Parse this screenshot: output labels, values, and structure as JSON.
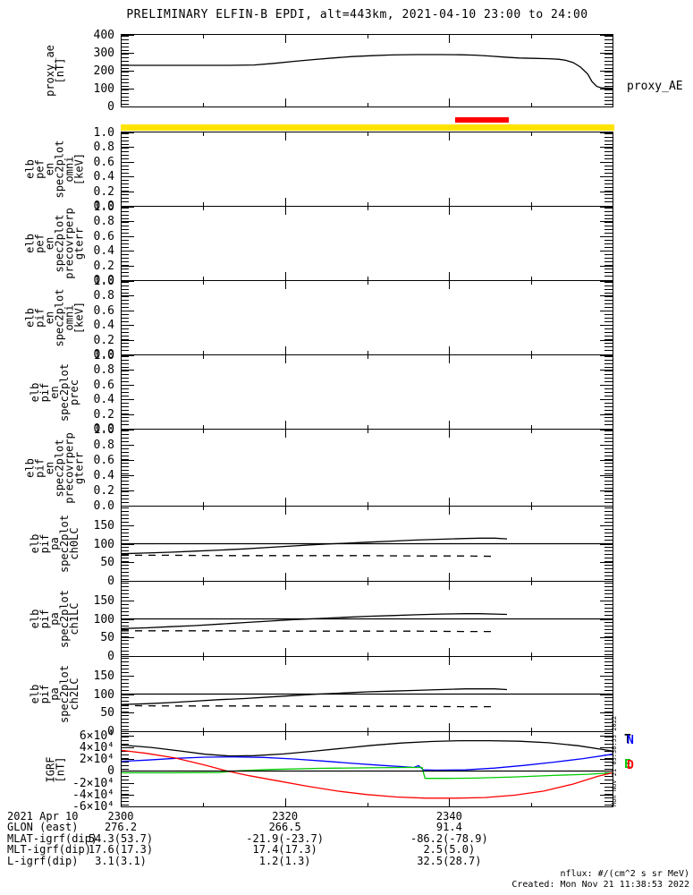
{
  "title": "PRELIMINARY ELFIN-B EPDI, alt=443km, 2021-04-10 23:00 to 24:00",
  "side_timestamp": "Mon Nov 21 03:38:53 2022",
  "footer": {
    "nflux_units": "nflux: #/(cm^2 s sr MeV)",
    "created": "Created: Mon Nov 21 11:38:53 2022"
  },
  "colors": {
    "axis": "#000000",
    "flag_yellow": "#ffe300",
    "flag_red": "#ff0000",
    "igrf_total": "#000000",
    "igrf_north": "#0000ff",
    "igrf_east": "#00cc00",
    "igrf_down": "#ff0000"
  },
  "flag_bars": [
    {
      "name": "red-flag-bar",
      "color": "#ff0000",
      "x0": 0.678,
      "x1": 0.785
    },
    {
      "name": "yellow-flag-bar",
      "color": "#ffe300",
      "x0": 0.0,
      "x1": 1.0
    }
  ],
  "igrf_legend": [
    {
      "label": "T",
      "color": "#000000"
    },
    {
      "label": "N",
      "color": "#0000ff"
    },
    {
      "label": "E",
      "color": "#00cc00"
    },
    {
      "label": "D",
      "color": "#ff0000"
    }
  ],
  "bottom_axis": {
    "date": "2021 Apr 10",
    "ticks": [
      {
        "label": "2300",
        "frac": 0.0
      },
      {
        "label": "2320",
        "frac": 0.3333
      },
      {
        "label": "2340",
        "frac": 0.6667
      }
    ],
    "rows": [
      {
        "label": "GLON (east)",
        "values": [
          "276.2",
          "266.5",
          "91.4"
        ]
      },
      {
        "label": "MLAT-igrf(dip)",
        "values": [
          "54.3(53.7)",
          "-21.9(-23.7)",
          "-86.2(-78.9)"
        ]
      },
      {
        "label": "MLT-igrf(dip)",
        "values": [
          "17.6(17.3)",
          "17.4(17.3)",
          "2.5(5.0)"
        ]
      },
      {
        "label": "L-igrf(dip)",
        "values": [
          "3.1(3.1)",
          "1.2(1.3)",
          "32.5(28.7)"
        ]
      }
    ]
  },
  "chart_data": [
    {
      "id": "proxy_ae",
      "type": "line",
      "ylabel_lines": [
        "proxy_ae",
        "[nT]"
      ],
      "right_label": "proxy_AE",
      "ylim": [
        0,
        400
      ],
      "yticks": [
        {
          "v": 400,
          "t": "400"
        },
        {
          "v": 300,
          "t": "300"
        },
        {
          "v": 200,
          "t": "200"
        },
        {
          "v": 100,
          "t": "100"
        },
        {
          "v": 0,
          "t": "0"
        }
      ],
      "xrange": [
        "23:00",
        "24:00"
      ],
      "series": [
        {
          "name": "proxy_ae",
          "color": "#000000",
          "style": "solid",
          "x": [
            0,
            0.08,
            0.16,
            0.22,
            0.27,
            0.31,
            0.35,
            0.39,
            0.43,
            0.47,
            0.51,
            0.55,
            0.6,
            0.65,
            0.69,
            0.72,
            0.75,
            0.78,
            0.81,
            0.84,
            0.87,
            0.89,
            0.905,
            0.92,
            0.935,
            0.95,
            0.958,
            0.968,
            0.978,
            1.0
          ],
          "y": [
            230,
            230,
            230,
            230,
            232,
            241,
            252,
            262,
            271,
            279,
            284,
            288,
            290,
            290,
            289,
            287,
            282,
            276,
            271,
            269,
            267,
            264,
            258,
            245,
            220,
            180,
            140,
            112,
            104,
            102
          ]
        }
      ]
    },
    {
      "id": "elb_pef_en_spec2plot_omni",
      "type": "empty",
      "ylabel_lines": [
        "elb",
        "pef",
        "en",
        "spec2plot",
        "omni",
        "[keV]"
      ],
      "ylim": [
        0,
        1
      ],
      "yticks": [
        {
          "v": 1,
          "t": "1.0"
        },
        {
          "v": 0.8,
          "t": "0.8"
        },
        {
          "v": 0.6,
          "t": "0.6"
        },
        {
          "v": 0.4,
          "t": "0.4"
        },
        {
          "v": 0.2,
          "t": "0.2"
        },
        {
          "v": 0,
          "t": "0.0"
        }
      ],
      "series": []
    },
    {
      "id": "elb_pef_en_precovrperp_gterr",
      "type": "empty",
      "ylabel_lines": [
        "elb",
        "pef",
        "en",
        "spec2plot",
        "precovrperp",
        "gterr"
      ],
      "ylim": [
        0,
        1
      ],
      "yticks": [
        {
          "v": 1,
          "t": "1.0"
        },
        {
          "v": 0.8,
          "t": "0.8"
        },
        {
          "v": 0.6,
          "t": "0.6"
        },
        {
          "v": 0.4,
          "t": "0.4"
        },
        {
          "v": 0.2,
          "t": "0.2"
        },
        {
          "v": 0,
          "t": "0.0"
        }
      ],
      "series": []
    },
    {
      "id": "elb_pif_en_spec2plot_omni",
      "type": "empty",
      "ylabel_lines": [
        "elb",
        "pif",
        "en",
        "spec2plot",
        "omni",
        "[keV]"
      ],
      "ylim": [
        0,
        1
      ],
      "yticks": [
        {
          "v": 1,
          "t": "1.0"
        },
        {
          "v": 0.8,
          "t": "0.8"
        },
        {
          "v": 0.6,
          "t": "0.6"
        },
        {
          "v": 0.4,
          "t": "0.4"
        },
        {
          "v": 0.2,
          "t": "0.2"
        },
        {
          "v": 0,
          "t": "0.0"
        }
      ],
      "series": []
    },
    {
      "id": "elb_pif_en_spec2plot_prec",
      "type": "empty",
      "ylabel_lines": [
        "elb",
        "pif",
        "en",
        "spec2plot",
        "prec"
      ],
      "ylim": [
        0,
        1
      ],
      "yticks": [
        {
          "v": 1,
          "t": "1.0"
        },
        {
          "v": 0.8,
          "t": "0.8"
        },
        {
          "v": 0.6,
          "t": "0.6"
        },
        {
          "v": 0.4,
          "t": "0.4"
        },
        {
          "v": 0.2,
          "t": "0.2"
        },
        {
          "v": 0,
          "t": "0.0"
        }
      ],
      "series": []
    },
    {
      "id": "elb_pif_en_precovrperp_gterr",
      "type": "empty",
      "ylabel_lines": [
        "elb",
        "pif",
        "en",
        "spec2plot",
        "precovrperp",
        "gterr"
      ],
      "ylim": [
        0,
        1
      ],
      "yticks": [
        {
          "v": 1,
          "t": "1.0"
        },
        {
          "v": 0.8,
          "t": "0.8"
        },
        {
          "v": 0.6,
          "t": "0.6"
        },
        {
          "v": 0.4,
          "t": "0.4"
        },
        {
          "v": 0.2,
          "t": "0.2"
        },
        {
          "v": 0,
          "t": "0.0"
        }
      ],
      "series": []
    },
    {
      "id": "elb_pif_pa_spec2plot_ch0LC",
      "type": "line",
      "ylabel_lines": [
        "elb",
        "pif",
        "pa",
        "spec2plot",
        "ch0LC"
      ],
      "ylim": [
        0,
        200
      ],
      "yticks": [
        {
          "v": 150,
          "t": "150"
        },
        {
          "v": 100,
          "t": "100"
        },
        {
          "v": 50,
          "t": "50"
        },
        {
          "v": 0,
          "t": "0"
        }
      ],
      "series": [
        {
          "name": "pa_ch0",
          "color": "#000000",
          "style": "solid",
          "x": [
            0,
            0.05,
            0.1,
            0.15,
            0.2,
            0.25,
            0.3,
            0.35,
            0.4,
            0.45,
            0.5,
            0.55,
            0.6,
            0.65,
            0.7,
            0.73,
            0.76,
            0.785
          ],
          "y": [
            73,
            75,
            77,
            80,
            83,
            86,
            90,
            94,
            98,
            101,
            104,
            107,
            110,
            112,
            114,
            115,
            115,
            113
          ]
        },
        {
          "name": "losscone_ch0",
          "color": "#000000",
          "style": "dashed",
          "x": [
            0,
            0.1,
            0.2,
            0.3,
            0.4,
            0.5,
            0.6,
            0.7,
            0.76
          ],
          "y": [
            69,
            69,
            68,
            68,
            68,
            68,
            67,
            67,
            66
          ]
        },
        {
          "name": "ref_100",
          "color": "#000000",
          "style": "solid",
          "x": [
            0,
            1
          ],
          "y": [
            100,
            100
          ]
        }
      ]
    },
    {
      "id": "elb_pif_pa_spec2plot_ch1LC",
      "type": "line",
      "ylabel_lines": [
        "elb",
        "pif",
        "pa",
        "spec2plot",
        "ch1LC"
      ],
      "ylim": [
        0,
        200
      ],
      "yticks": [
        {
          "v": 150,
          "t": "150"
        },
        {
          "v": 100,
          "t": "100"
        },
        {
          "v": 50,
          "t": "50"
        },
        {
          "v": 0,
          "t": "0"
        }
      ],
      "series": [
        {
          "name": "pa_ch1",
          "color": "#000000",
          "style": "solid",
          "x": [
            0,
            0.05,
            0.1,
            0.15,
            0.2,
            0.25,
            0.3,
            0.35,
            0.4,
            0.45,
            0.5,
            0.55,
            0.6,
            0.65,
            0.7,
            0.73,
            0.76,
            0.785
          ],
          "y": [
            74,
            76,
            79,
            82,
            86,
            90,
            94,
            98,
            101,
            104,
            107,
            109,
            111,
            113,
            114,
            114,
            113,
            112
          ]
        },
        {
          "name": "losscone_ch1",
          "color": "#000000",
          "style": "dashed",
          "x": [
            0,
            0.1,
            0.2,
            0.3,
            0.4,
            0.5,
            0.6,
            0.7,
            0.76
          ],
          "y": [
            68,
            68,
            68,
            67,
            67,
            67,
            67,
            66,
            66
          ]
        },
        {
          "name": "ref_100",
          "color": "#000000",
          "style": "solid",
          "x": [
            0,
            1
          ],
          "y": [
            100,
            100
          ]
        }
      ]
    },
    {
      "id": "elb_pif_pa_spec2plot_ch2LC",
      "type": "line",
      "ylabel_lines": [
        "elb",
        "pif",
        "pa",
        "spec2plot",
        "ch2LC"
      ],
      "ylim": [
        0,
        200
      ],
      "yticks": [
        {
          "v": 150,
          "t": "150"
        },
        {
          "v": 100,
          "t": "100"
        },
        {
          "v": 50,
          "t": "50"
        },
        {
          "v": 0,
          "t": "0"
        }
      ],
      "series": [
        {
          "name": "pa_ch2",
          "color": "#000000",
          "style": "solid",
          "x": [
            0,
            0.05,
            0.1,
            0.15,
            0.2,
            0.25,
            0.3,
            0.35,
            0.4,
            0.45,
            0.5,
            0.55,
            0.6,
            0.65,
            0.7,
            0.73,
            0.76,
            0.785
          ],
          "y": [
            72,
            74,
            77,
            81,
            85,
            88,
            92,
            96,
            100,
            103,
            106,
            108,
            110,
            112,
            114,
            114,
            114,
            112
          ]
        },
        {
          "name": "losscone_ch2",
          "color": "#000000",
          "style": "dashed",
          "x": [
            0,
            0.1,
            0.2,
            0.3,
            0.4,
            0.5,
            0.6,
            0.7,
            0.76
          ],
          "y": [
            69,
            68,
            68,
            68,
            67,
            67,
            67,
            66,
            66
          ]
        },
        {
          "name": "ref_100",
          "color": "#000000",
          "style": "solid",
          "x": [
            0,
            1
          ],
          "y": [
            100,
            100
          ]
        }
      ]
    },
    {
      "id": "igrf",
      "type": "line",
      "ylabel_lines": [
        "IGRF",
        "[nT]"
      ],
      "ylim": [
        -60000,
        66000
      ],
      "yticks": [
        {
          "v": 60000,
          "t": "6×10⁴"
        },
        {
          "v": 40000,
          "t": "4×10⁴"
        },
        {
          "v": 20000,
          "t": "2×10⁴"
        },
        {
          "v": 0,
          "t": "0"
        },
        {
          "v": -20000,
          "t": "-2×10⁴"
        },
        {
          "v": -40000,
          "t": "-4×10⁴"
        },
        {
          "v": -60000,
          "t": "-6×10⁴"
        }
      ],
      "series": [
        {
          "name": "igrf_T",
          "color": "#000000",
          "style": "solid",
          "x": [
            0,
            0.06,
            0.12,
            0.17,
            0.22,
            0.27,
            0.33,
            0.39,
            0.45,
            0.51,
            0.57,
            0.63,
            0.69,
            0.75,
            0.81,
            0.87,
            0.93,
            1.0
          ],
          "y": [
            44000,
            40000,
            34000,
            28500,
            25500,
            26000,
            29000,
            33500,
            38500,
            43500,
            47500,
            50000,
            51500,
            51500,
            50500,
            48000,
            43000,
            34000
          ]
        },
        {
          "name": "igrf_N",
          "color": "#0000ff",
          "style": "solid",
          "x": [
            0,
            0.05,
            0.11,
            0.17,
            0.23,
            0.29,
            0.35,
            0.41,
            0.47,
            0.53,
            0.57,
            0.595,
            0.605,
            0.615,
            0.64,
            0.7,
            0.76,
            0.82,
            0.88,
            0.94,
            1.0
          ],
          "y": [
            16500,
            18500,
            21500,
            23500,
            24000,
            23000,
            20500,
            17000,
            13000,
            9500,
            7500,
            6000,
            9000,
            2000,
            1500,
            2000,
            5000,
            9500,
            15000,
            21000,
            28500
          ]
        },
        {
          "name": "igrf_E",
          "color": "#00cc00",
          "style": "solid",
          "x": [
            0,
            0.1,
            0.2,
            0.24,
            0.3,
            0.4,
            0.5,
            0.58,
            0.612,
            0.618,
            0.66,
            0.72,
            0.8,
            0.88,
            0.95,
            1.0
          ],
          "y": [
            -3000,
            -3000,
            -2500,
            500,
            2500,
            4500,
            5500,
            6000,
            6000,
            -12500,
            -12500,
            -12000,
            -10000,
            -7500,
            -5500,
            -3000
          ]
        },
        {
          "name": "igrf_D",
          "color": "#ff0000",
          "style": "solid",
          "x": [
            0,
            0.05,
            0.11,
            0.17,
            0.215,
            0.26,
            0.32,
            0.38,
            0.44,
            0.5,
            0.56,
            0.62,
            0.68,
            0.74,
            0.8,
            0.86,
            0.92,
            0.97,
            1.0
          ],
          "y": [
            35000,
            30000,
            22000,
            10000,
            0,
            -8000,
            -17000,
            -26000,
            -34000,
            -40000,
            -44000,
            -46000,
            -46000,
            -45000,
            -41000,
            -34000,
            -22000,
            -9000,
            -3000
          ]
        },
        {
          "name": "ref_0",
          "color": "#000000",
          "style": "solid",
          "x": [
            0,
            1
          ],
          "y": [
            0,
            0
          ]
        }
      ]
    }
  ]
}
